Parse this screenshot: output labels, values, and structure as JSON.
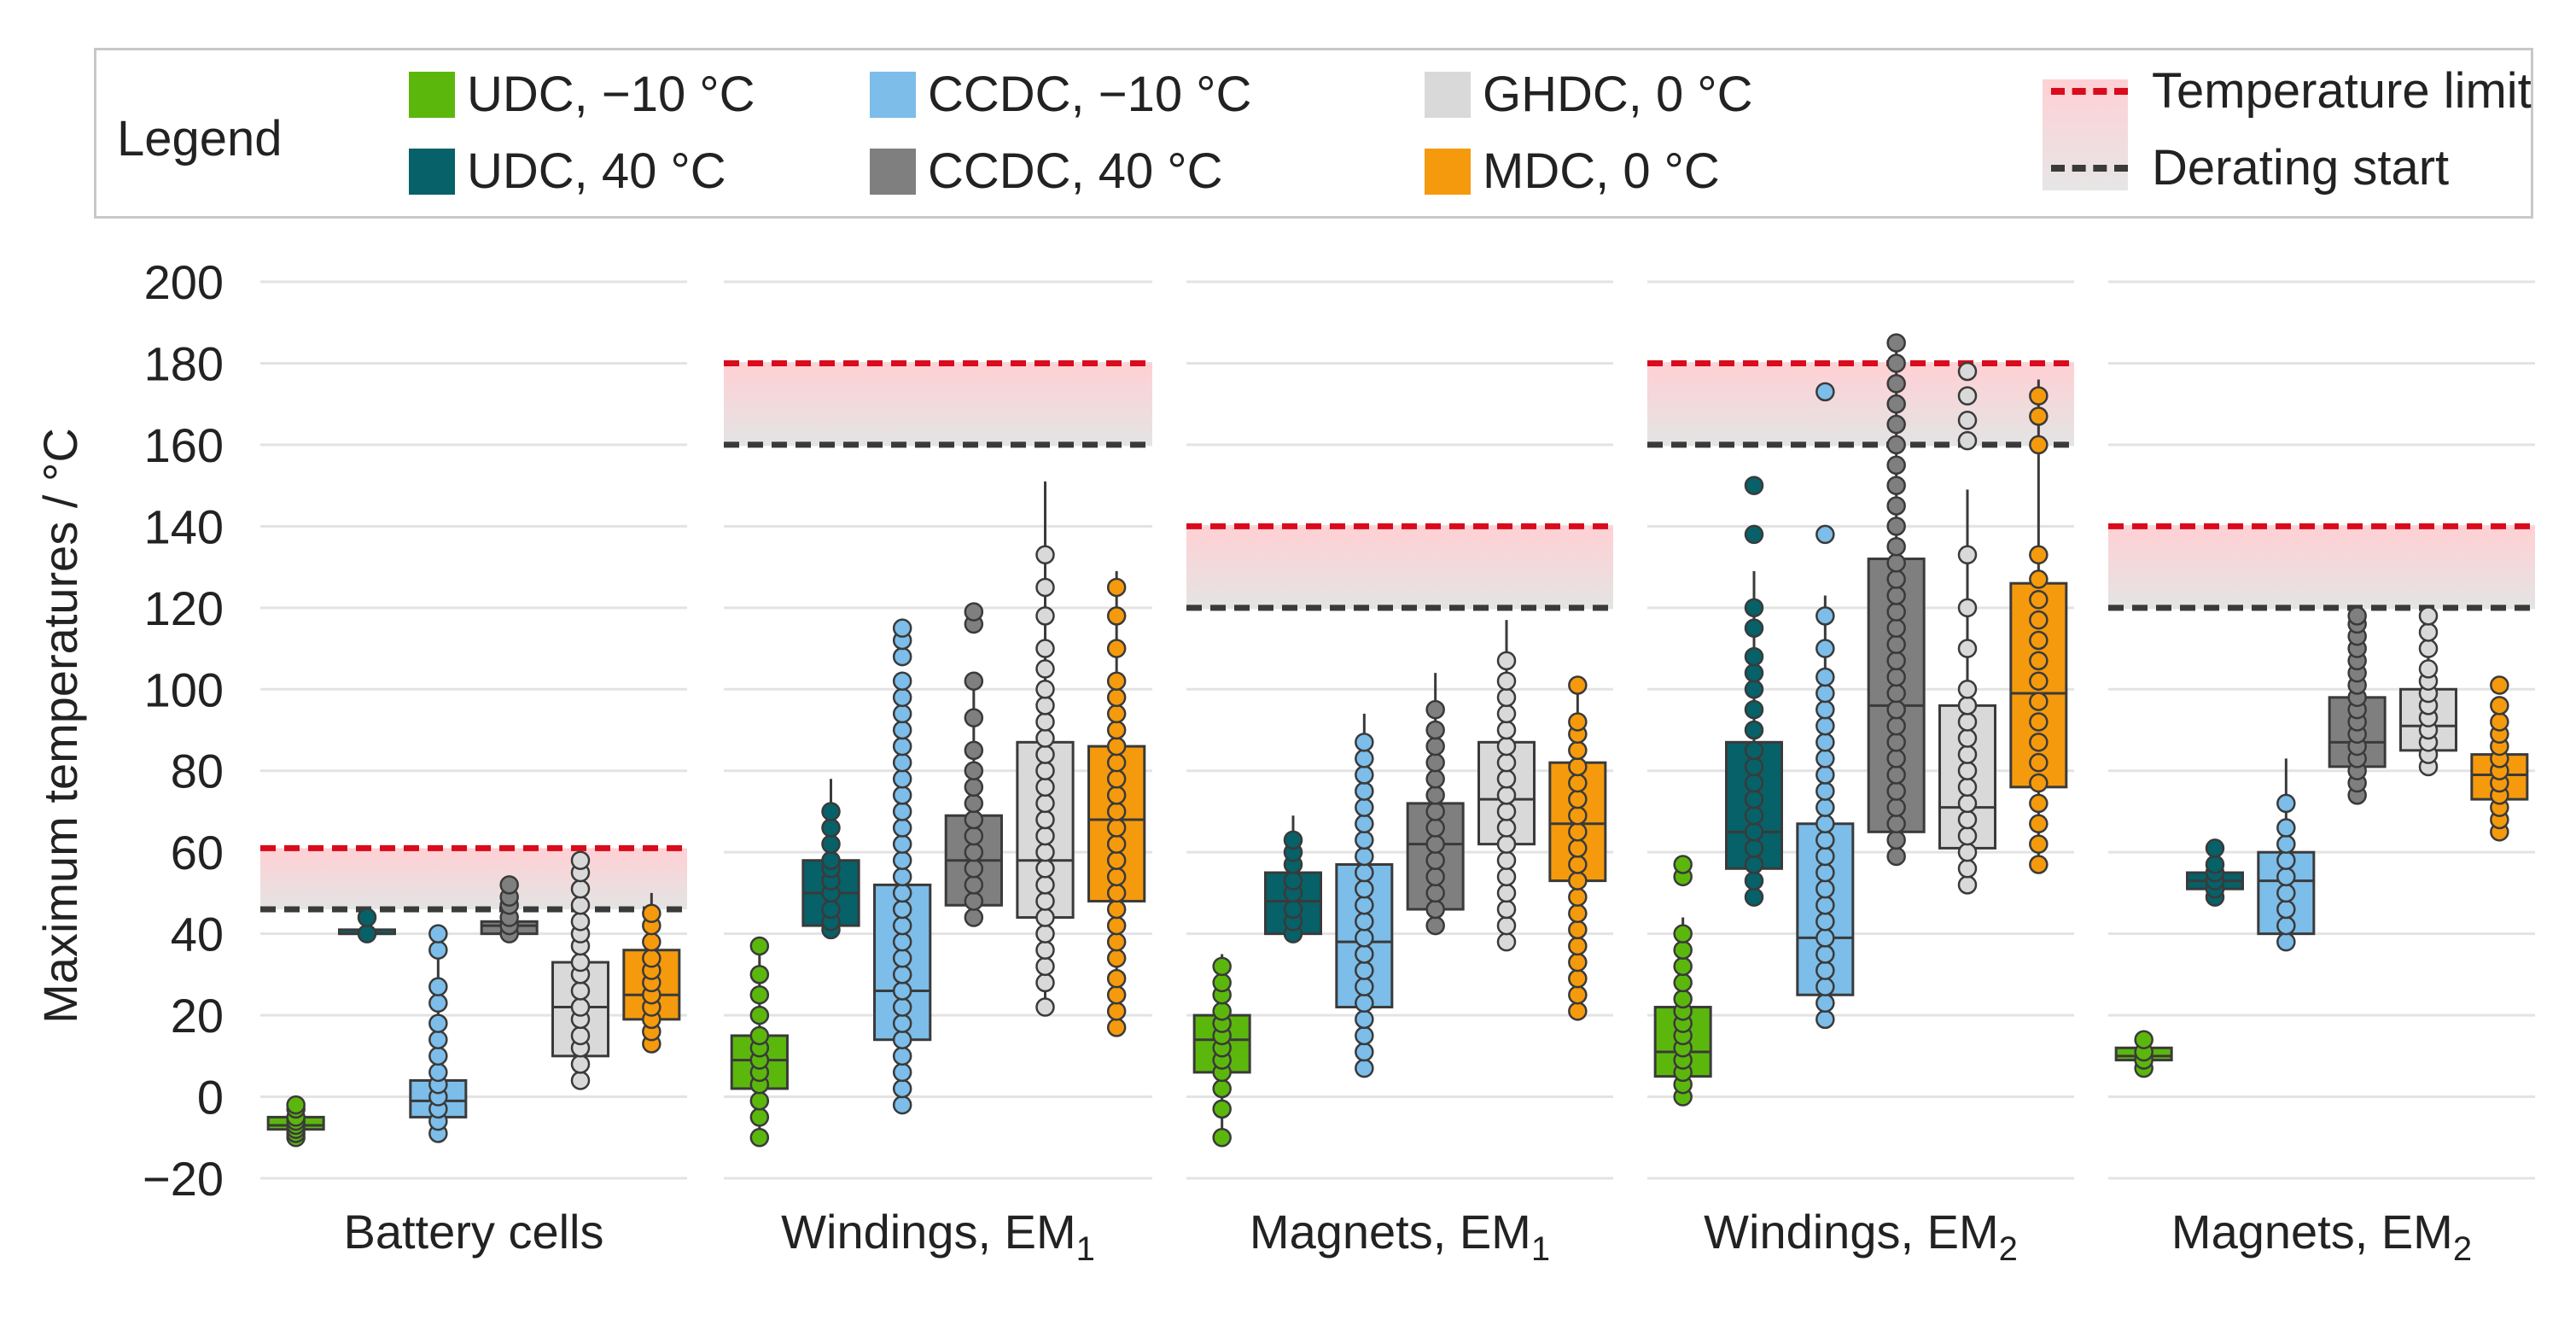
{
  "legend": {
    "title": "Legend",
    "items": [
      {
        "label": "UDC, −10 °C",
        "color": "#5cb70d"
      },
      {
        "label": "UDC, 40 °C",
        "color": "#066169"
      },
      {
        "label": "CCDC, −10 °C",
        "color": "#7cbde9"
      },
      {
        "label": "CCDC, 40 °C",
        "color": "#7f7f7f"
      },
      {
        "label": "GHDC, 0 °C",
        "color": "#d9d9d9"
      },
      {
        "label": "MDC, 0 °C",
        "color": "#f59a0c"
      }
    ],
    "lines": [
      {
        "label": "Temperature limit",
        "color": "#d90b1c"
      },
      {
        "label": "Derating start",
        "color": "#3a3a3a"
      }
    ]
  },
  "chart_data": {
    "type": "box",
    "ylabel": "Maximum temperatures / °C",
    "ylim": [
      -20,
      200
    ],
    "yticks": [
      -20,
      0,
      20,
      40,
      60,
      80,
      100,
      120,
      140,
      160,
      180,
      200
    ],
    "ytick_labels": [
      "−20",
      "0",
      "20",
      "40",
      "60",
      "80",
      "100",
      "120",
      "140",
      "160",
      "180",
      "200"
    ],
    "grid": "horizontal",
    "legend_position": "top",
    "panels": [
      {
        "label": "Battery cells",
        "temperature_limit": 61,
        "derating_start": 46,
        "boxes": [
          {
            "series": "UDC, −10 °C",
            "q1": -8,
            "median": -7,
            "q3": -5,
            "whisker_low": -10,
            "whisker_high": -2,
            "points": [
              -10,
              -9,
              -8,
              -7,
              -6,
              -5,
              -3,
              -2
            ]
          },
          {
            "series": "UDC, 40 °C",
            "q1": 40,
            "median": 40,
            "q3": 41,
            "whisker_low": 40,
            "whisker_high": 44,
            "points": [
              40,
              44
            ]
          },
          {
            "series": "CCDC, −10 °C",
            "q1": -5,
            "median": -1,
            "q3": 4,
            "whisker_low": -10,
            "whisker_high": 40,
            "points": [
              -9,
              -6,
              -3,
              0,
              3,
              6,
              10,
              14,
              18,
              23,
              27,
              36,
              40
            ]
          },
          {
            "series": "CCDC, 40 °C",
            "q1": 40,
            "median": 42,
            "q3": 43,
            "whisker_low": 40,
            "whisker_high": 52,
            "points": [
              40,
              42,
              44,
              47,
              49,
              52
            ]
          },
          {
            "series": "GHDC, 0 °C",
            "q1": 10,
            "median": 22,
            "q3": 33,
            "whisker_low": 4,
            "whisker_high": 58,
            "points": [
              4,
              8,
              12,
              15,
              19,
              22,
              26,
              30,
              33,
              37,
              40,
              43,
              47,
              51,
              55,
              58
            ]
          },
          {
            "series": "MDC, 0 °C",
            "q1": 19,
            "median": 25,
            "q3": 36,
            "whisker_low": 13,
            "whisker_high": 50,
            "points": [
              13,
              16,
              19,
              22,
              25,
              28,
              31,
              34,
              38,
              42,
              45
            ]
          }
        ]
      },
      {
        "label": "Windings, EM",
        "label_sub": "1",
        "temperature_limit": 180,
        "derating_start": 160,
        "boxes": [
          {
            "series": "UDC, −10 °C",
            "q1": 2,
            "median": 9,
            "q3": 15,
            "whisker_low": -10,
            "whisker_high": 37,
            "points": [
              -10,
              -5,
              -1,
              3,
              6,
              9,
              12,
              15,
              20,
              25,
              30,
              37
            ]
          },
          {
            "series": "UDC, 40 °C",
            "q1": 42,
            "median": 50,
            "q3": 58,
            "whisker_low": 40,
            "whisker_high": 78,
            "points": [
              41,
              43,
              46,
              50,
              53,
              56,
              58,
              62,
              66,
              70
            ]
          },
          {
            "series": "CCDC, −10 °C",
            "q1": 14,
            "median": 26,
            "q3": 52,
            "whisker_low": -2,
            "whisker_high": 104,
            "points": [
              -2,
              2,
              6,
              10,
              14,
              18,
              22,
              26,
              30,
              34,
              38,
              42,
              46,
              50,
              54,
              58,
              62,
              66,
              70,
              74,
              78,
              82,
              86,
              90,
              94,
              98,
              102,
              108,
              112,
              115
            ]
          },
          {
            "series": "CCDC, 40 °C",
            "q1": 47,
            "median": 58,
            "q3": 69,
            "whisker_low": 44,
            "whisker_high": 102,
            "points": [
              44,
              48,
              52,
              56,
              60,
              64,
              68,
              72,
              76,
              80,
              85,
              93,
              102,
              116,
              119
            ]
          },
          {
            "series": "GHDC, 0 °C",
            "q1": 44,
            "median": 58,
            "q3": 87,
            "whisker_low": 22,
            "whisker_high": 151,
            "points": [
              22,
              28,
              32,
              36,
              40,
              44,
              48,
              52,
              56,
              60,
              64,
              68,
              72,
              76,
              80,
              84,
              88,
              92,
              96,
              100,
              105,
              110,
              118,
              125,
              133
            ]
          },
          {
            "series": "MDC, 0 °C",
            "q1": 48,
            "median": 68,
            "q3": 86,
            "whisker_low": 17,
            "whisker_high": 129,
            "points": [
              17,
              21,
              25,
              29,
              34,
              38,
              42,
              46,
              50,
              54,
              58,
              62,
              66,
              70,
              74,
              78,
              82,
              86,
              90,
              94,
              98,
              102,
              110,
              118,
              125
            ]
          }
        ]
      },
      {
        "label": "Magnets, EM",
        "label_sub": "1",
        "temperature_limit": 140,
        "derating_start": 120,
        "boxes": [
          {
            "series": "UDC, −10 °C",
            "q1": 6,
            "median": 14,
            "q3": 20,
            "whisker_low": -10,
            "whisker_high": 35,
            "points": [
              -10,
              -3,
              2,
              6,
              9,
              12,
              15,
              18,
              21,
              25,
              28,
              32
            ]
          },
          {
            "series": "UDC, 40 °C",
            "q1": 40,
            "median": 48,
            "q3": 55,
            "whisker_low": 40,
            "whisker_high": 69,
            "points": [
              40,
              43,
              46,
              50,
              53,
              57,
              60,
              63
            ]
          },
          {
            "series": "CCDC, −10 °C",
            "q1": 22,
            "median": 38,
            "q3": 57,
            "whisker_low": 7,
            "whisker_high": 94,
            "points": [
              7,
              11,
              15,
              19,
              23,
              27,
              31,
              35,
              39,
              43,
              47,
              51,
              55,
              59,
              63,
              67,
              71,
              75,
              79,
              83,
              87
            ]
          },
          {
            "series": "CCDC, 40 °C",
            "q1": 46,
            "median": 62,
            "q3": 72,
            "whisker_low": 42,
            "whisker_high": 104,
            "points": [
              42,
              46,
              50,
              54,
              58,
              62,
              66,
              70,
              74,
              78,
              82,
              86,
              90,
              95
            ]
          },
          {
            "series": "GHDC, 0 °C",
            "q1": 62,
            "median": 73,
            "q3": 87,
            "whisker_low": 37,
            "whisker_high": 117,
            "points": [
              38,
              42,
              46,
              50,
              54,
              58,
              62,
              66,
              70,
              74,
              78,
              82,
              86,
              90,
              94,
              98,
              102,
              107
            ]
          },
          {
            "series": "MDC, 0 °C",
            "q1": 53,
            "median": 67,
            "q3": 82,
            "whisker_low": 20,
            "whisker_high": 101,
            "points": [
              21,
              25,
              29,
              33,
              37,
              41,
              45,
              49,
              53,
              57,
              61,
              65,
              69,
              73,
              77,
              81,
              85,
              89,
              92,
              101
            ]
          }
        ]
      },
      {
        "label": "Windings, EM",
        "label_sub": "2",
        "temperature_limit": 180,
        "derating_start": 160,
        "boxes": [
          {
            "series": "UDC, −10 °C",
            "q1": 5,
            "median": 11,
            "q3": 22,
            "whisker_low": 0,
            "whisker_high": 44,
            "points": [
              0,
              3,
              6,
              9,
              12,
              15,
              18,
              21,
              24,
              28,
              32,
              36,
              40,
              54,
              57
            ]
          },
          {
            "series": "UDC, 40 °C",
            "q1": 56,
            "median": 65,
            "q3": 87,
            "whisker_low": 49,
            "whisker_high": 129,
            "points": [
              49,
              53,
              57,
              61,
              65,
              69,
              73,
              77,
              81,
              85,
              90,
              95,
              100,
              104,
              108,
              115,
              120,
              138,
              150
            ]
          },
          {
            "series": "CCDC, −10 °C",
            "q1": 25,
            "median": 39,
            "q3": 67,
            "whisker_low": 19,
            "whisker_high": 123,
            "points": [
              19,
              23,
              27,
              31,
              35,
              39,
              43,
              47,
              51,
              55,
              59,
              63,
              67,
              71,
              75,
              79,
              83,
              87,
              91,
              95,
              99,
              103,
              110,
              118,
              138,
              173
            ]
          },
          {
            "series": "CCDC, 40 °C",
            "q1": 65,
            "median": 96,
            "q3": 132,
            "whisker_low": 59,
            "whisker_high": 187,
            "points": [
              59,
              63,
              67,
              71,
              75,
              79,
              83,
              87,
              91,
              95,
              99,
              103,
              107,
              111,
              115,
              119,
              123,
              127,
              131,
              135,
              140,
              145,
              150,
              155,
              160,
              165,
              170,
              175,
              180,
              185
            ]
          },
          {
            "series": "GHDC, 0 °C",
            "q1": 61,
            "median": 71,
            "q3": 96,
            "whisker_low": 52,
            "whisker_high": 149,
            "points": [
              52,
              56,
              60,
              64,
              68,
              72,
              76,
              80,
              84,
              88,
              92,
              96,
              100,
              110,
              120,
              133,
              161,
              166,
              172,
              178
            ]
          },
          {
            "series": "MDC, 0 °C",
            "q1": 76,
            "median": 99,
            "q3": 126,
            "whisker_low": 57,
            "whisker_high": 176,
            "points": [
              57,
              62,
              67,
              72,
              77,
              82,
              87,
              92,
              97,
              102,
              107,
              112,
              117,
              122,
              127,
              133,
              160,
              167,
              172
            ]
          }
        ]
      },
      {
        "label": "Magnets, EM",
        "label_sub": "2",
        "temperature_limit": 140,
        "derating_start": 120,
        "boxes": [
          {
            "series": "UDC, −10 °C",
            "q1": 9,
            "median": 10,
            "q3": 12,
            "whisker_low": 7,
            "whisker_high": 14,
            "points": [
              7,
              9,
              11,
              14
            ]
          },
          {
            "series": "UDC, 40 °C",
            "q1": 51,
            "median": 53,
            "q3": 55,
            "whisker_low": 49,
            "whisker_high": 61,
            "points": [
              49,
              51,
              53,
              55,
              57,
              61
            ]
          },
          {
            "series": "CCDC, −10 °C",
            "q1": 40,
            "median": 53,
            "q3": 60,
            "whisker_low": 38,
            "whisker_high": 83,
            "points": [
              38,
              42,
              46,
              50,
              54,
              58,
              62,
              66,
              72
            ]
          },
          {
            "series": "CCDC, 40 °C",
            "q1": 81,
            "median": 87,
            "q3": 98,
            "whisker_low": 74,
            "whisker_high": 118,
            "points": [
              74,
              77,
              80,
              83,
              86,
              89,
              92,
              95,
              98,
              101,
              104,
              107,
              110,
              113,
              116,
              118
            ]
          },
          {
            "series": "GHDC, 0 °C",
            "q1": 85,
            "median": 91,
            "q3": 100,
            "whisker_low": 81,
            "whisker_high": 118,
            "points": [
              81,
              84,
              87,
              90,
              93,
              96,
              99,
              102,
              105,
              110,
              114,
              118
            ]
          },
          {
            "series": "MDC, 0 °C",
            "q1": 73,
            "median": 79,
            "q3": 84,
            "whisker_low": 65,
            "whisker_high": 96,
            "points": [
              65,
              68,
              71,
              74,
              77,
              80,
              83,
              86,
              89,
              92,
              96,
              101
            ]
          }
        ]
      }
    ]
  }
}
